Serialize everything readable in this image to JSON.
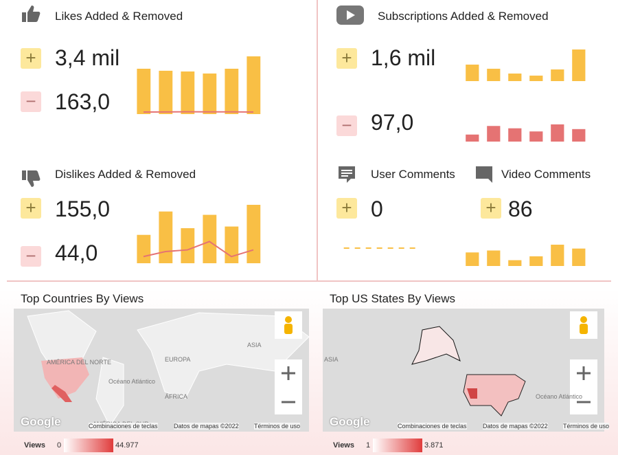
{
  "widgets": [
    {
      "title": "Likes Added & Removed",
      "added": "3,4 mil",
      "removed": "163,0",
      "chart": {
        "type": "bar_line",
        "bars": [
          561,
          536,
          527,
          502,
          561,
          714
        ],
        "line": [
          25,
          27,
          29,
          28,
          28,
          26
        ],
        "bar_color": "#f9bf45",
        "line_color": "#e57373"
      }
    },
    {
      "title": "Subscriptions Added & Removed",
      "added": "1,6 mil",
      "removed": "97,0",
      "chart": {
        "type": "bar",
        "bars": [
          310,
          232,
          142,
          103,
          219,
          594
        ],
        "bar_color": "#f9bf45"
      },
      "chart2": {
        "type": "bar",
        "bars": [
          9,
          20,
          17,
          13,
          22,
          16
        ],
        "bar_color": "#e57373"
      }
    },
    {
      "title": "Dislikes Added & Removed",
      "added": "155,0",
      "removed": "44,0",
      "chart": {
        "type": "bar_line",
        "bars": [
          17,
          31,
          21,
          29,
          22,
          35
        ],
        "line": [
          4,
          7,
          8,
          13,
          4,
          8
        ],
        "bar_color": "#f9bf45",
        "line_color": "#e57373"
      }
    },
    {
      "title": "User Comments",
      "added": "0",
      "chart": {
        "type": "line",
        "line": [
          0,
          0,
          0,
          0,
          0,
          0
        ],
        "line_color": "#f9bf45"
      }
    },
    {
      "title": "Video Comments",
      "added": "86",
      "chart": {
        "type": "bar",
        "bars": [
          14,
          16,
          6,
          10,
          22,
          18
        ],
        "bar_color": "#f9bf45"
      }
    }
  ],
  "maps": [
    {
      "title": "Top Countries By Views",
      "labels": [
        "AMÉRICA DEL NORTE",
        "Océano Atlántico",
        "EUROPA",
        "ASIA",
        "ÁFRICA",
        "AMÉRICA DEL SUR"
      ],
      "google": "Google",
      "footer": [
        "Combinaciones de teclas",
        "Datos de mapas ©2022",
        "Términos de uso"
      ],
      "legend": {
        "name": "Views",
        "min": "0",
        "max": "44.977"
      }
    },
    {
      "title": "Top US States By Views",
      "labels": [
        "ASIA",
        "Océano Atlántico"
      ],
      "google": "Google",
      "footer": [
        "Combinaciones de teclas",
        "Datos de mapas ©2022",
        "Términos de uso"
      ],
      "legend": {
        "name": "Views",
        "min": "1",
        "max": "3.871"
      }
    }
  ]
}
